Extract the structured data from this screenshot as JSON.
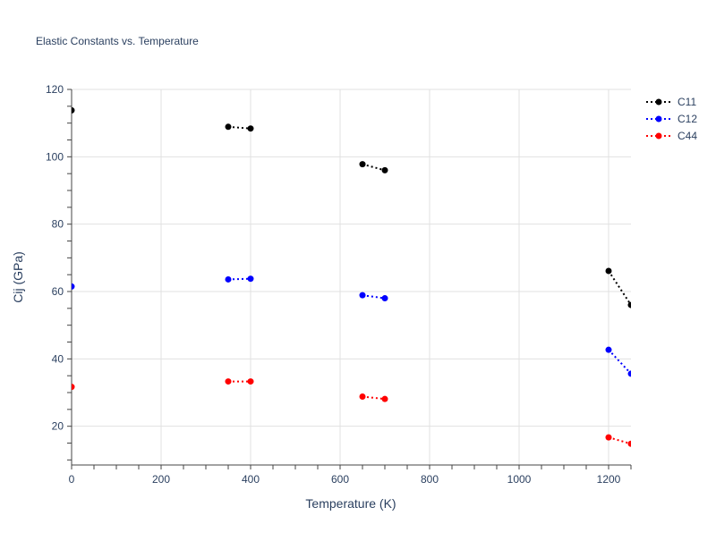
{
  "chart_data": {
    "type": "line",
    "title": "Elastic Constants vs. Temperature",
    "xlabel": "Temperature (K)",
    "ylabel": "Cij (GPa)",
    "xlim": [
      0,
      1250
    ],
    "ylim": [
      8.5,
      120
    ],
    "xticks": [
      0,
      200,
      400,
      600,
      800,
      1000,
      1200
    ],
    "yticks": [
      20,
      40,
      60,
      80,
      100,
      120
    ],
    "grid": true,
    "legend_position": "top-right",
    "line_style": "dotted",
    "series": [
      {
        "name": "C11",
        "color": "#000000",
        "segments": [
          [
            [
              0,
              113.8
            ]
          ],
          [
            [
              350,
              108.9
            ],
            [
              400,
              108.4
            ]
          ],
          [
            [
              650,
              97.8
            ],
            [
              700,
              96.0
            ]
          ],
          [
            [
              1200,
              66.1
            ],
            [
              1250,
              56.0
            ]
          ]
        ]
      },
      {
        "name": "C12",
        "color": "#0000ff",
        "segments": [
          [
            [
              0,
              61.5
            ]
          ],
          [
            [
              350,
              63.6
            ],
            [
              400,
              63.8
            ]
          ],
          [
            [
              650,
              58.9
            ],
            [
              700,
              58.0
            ]
          ],
          [
            [
              1200,
              42.7
            ],
            [
              1250,
              35.6
            ]
          ]
        ]
      },
      {
        "name": "C44",
        "color": "#ff0000",
        "segments": [
          [
            [
              0,
              31.7
            ]
          ],
          [
            [
              350,
              33.3
            ],
            [
              400,
              33.3
            ]
          ],
          [
            [
              650,
              28.8
            ],
            [
              700,
              28.1
            ]
          ],
          [
            [
              1200,
              16.7
            ],
            [
              1250,
              14.8
            ]
          ]
        ]
      }
    ]
  }
}
